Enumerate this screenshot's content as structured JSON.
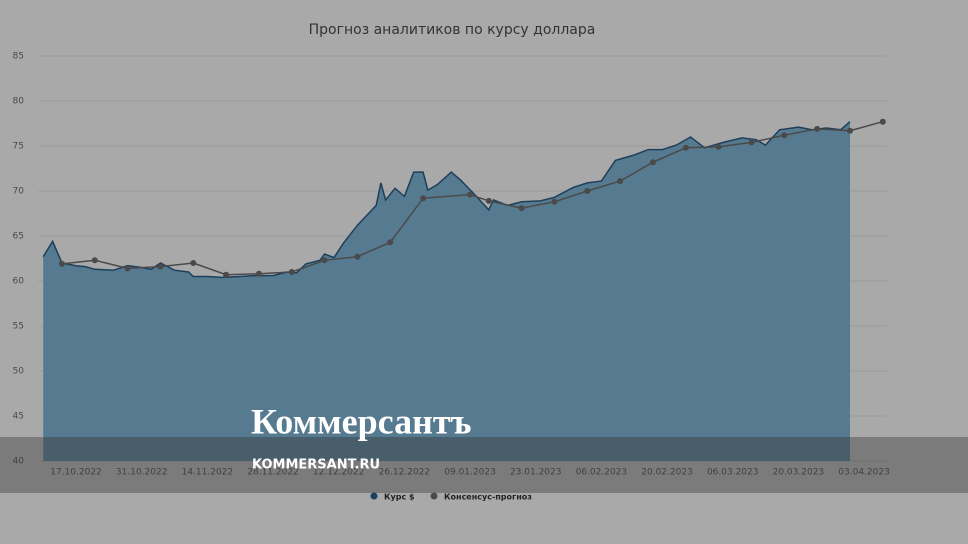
{
  "chart_data": {
    "type": "line",
    "title": "Прогноз аналитиков по курсу доллара",
    "xlim": [
      "09.10.2022",
      "08.04.2023"
    ],
    "xticks": [
      "17.10.2022",
      "31.10.2022",
      "14.11.2022",
      "28.11.2022",
      "12.12.2022",
      "26.12.2022",
      "09.01.2023",
      "23.01.2023",
      "06.02.2023",
      "20.02.2023",
      "06.03.2023",
      "20.03.2023",
      "03.04.2023"
    ],
    "ylim": [
      40,
      85
    ],
    "yticks": [
      40,
      45,
      50,
      55,
      60,
      65,
      70,
      75,
      80,
      85
    ],
    "grid": true,
    "series": [
      {
        "name": "Курс $",
        "color": "#1d3f5c",
        "fill": "#567a8f",
        "x": [
          "10.10.2022",
          "12.10.2022",
          "14.10.2022",
          "17.10.2022",
          "19.10.2022",
          "21.10.2022",
          "25.10.2022",
          "28.10.2022",
          "31.10.2022",
          "02.11.2022",
          "04.11.2022",
          "07.11.2022",
          "10.11.2022",
          "11.11.2022",
          "14.11.2022",
          "17.11.2022",
          "21.11.2022",
          "24.11.2022",
          "28.11.2022",
          "01.12.2022",
          "03.12.2022",
          "05.12.2022",
          "08.12.2022",
          "09.12.2022",
          "11.12.2022",
          "13.12.2022",
          "16.12.2022",
          "20.12.2022",
          "21.12.2022",
          "22.12.2022",
          "24.12.2022",
          "26.12.2022",
          "28.12.2022",
          "30.12.2022",
          "31.12.2022",
          "02.01.2023",
          "05.01.2023",
          "07.01.2023",
          "10.01.2023",
          "13.01.2023",
          "14.01.2023",
          "17.01.2023",
          "20.01.2023",
          "24.01.2023",
          "27.01.2023",
          "31.01.2023",
          "03.02.2023",
          "06.02.2023",
          "09.02.2023",
          "13.02.2023",
          "16.02.2023",
          "19.02.2023",
          "22.02.2023",
          "25.02.2023",
          "28.02.2023",
          "04.03.2023",
          "08.03.2023",
          "11.03.2023",
          "13.03.2023",
          "16.03.2023",
          "20.03.2023",
          "23.03.2023",
          "26.03.2023",
          "29.03.2023",
          "31.03.2023"
        ],
        "values": [
          62.7,
          64.4,
          62.0,
          61.7,
          61.6,
          61.3,
          61.2,
          61.7,
          61.5,
          61.3,
          62.0,
          61.2,
          61.0,
          60.5,
          60.5,
          60.4,
          60.5,
          60.6,
          60.6,
          61.0,
          60.9,
          61.9,
          62.3,
          63.0,
          62.6,
          64.2,
          66.2,
          68.4,
          70.9,
          69.0,
          70.3,
          69.4,
          72.1,
          72.1,
          70.1,
          70.7,
          72.1,
          71.2,
          69.6,
          67.9,
          69.0,
          68.4,
          68.8,
          68.9,
          69.3,
          70.4,
          70.9,
          71.1,
          73.4,
          74.0,
          74.6,
          74.6,
          75.1,
          76.0,
          74.8,
          75.4,
          75.9,
          75.7,
          75.1,
          76.8,
          77.1,
          76.8,
          77.0,
          76.8,
          77.7
        ]
      },
      {
        "name": "Консенсус-прогноз",
        "color": "#4a4a4a",
        "x": [
          "14.10.2022",
          "21.10.2022",
          "28.10.2022",
          "04.11.2022",
          "11.11.2022",
          "18.11.2022",
          "25.11.2022",
          "02.12.2022",
          "09.12.2022",
          "16.12.2022",
          "23.12.2022",
          "30.12.2022",
          "09.01.2023",
          "13.01.2023",
          "20.01.2023",
          "27.01.2023",
          "03.02.2023",
          "10.02.2023",
          "17.02.2023",
          "24.02.2023",
          "03.03.2023",
          "10.03.2023",
          "17.03.2023",
          "24.03.2023",
          "31.03.2023",
          "07.04.2023"
        ],
        "values": [
          61.9,
          62.3,
          61.4,
          61.6,
          62.0,
          60.7,
          60.8,
          61.0,
          62.3,
          62.7,
          64.3,
          69.2,
          69.6,
          68.9,
          68.1,
          68.8,
          70.0,
          71.1,
          73.2,
          74.8,
          74.9,
          75.4,
          76.2,
          76.9,
          76.7,
          77.7
        ]
      }
    ]
  },
  "watermark": {
    "logo": "Коммерсантъ",
    "url": "KOMMERSANT.RU"
  }
}
